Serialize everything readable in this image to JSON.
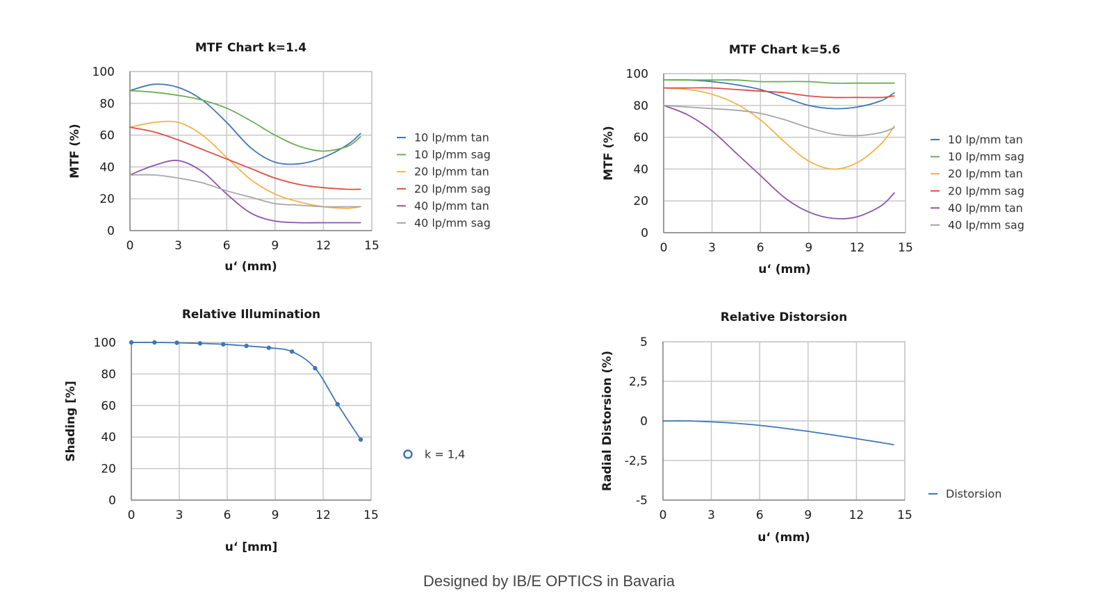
{
  "footer": {
    "text": "Designed by IB/E OPTICS in Bavaria"
  },
  "chart_data": [
    {
      "type": "line",
      "title": "MTF Chart k=1.4",
      "xlabel": "u‘ (mm)",
      "ylabel": "MTF (%)",
      "xlim": [
        0,
        15
      ],
      "ylim": [
        0,
        100
      ],
      "xticks": [
        "0",
        "3",
        "6",
        "9",
        "12",
        "15"
      ],
      "yticks": [
        "0",
        "20",
        "40",
        "60",
        "80",
        "100"
      ],
      "grid": true,
      "legend_position": "right",
      "x": [
        0,
        1.5,
        3,
        4.5,
        6,
        7.5,
        9,
        10.5,
        12,
        13.5,
        14.3
      ],
      "series": [
        {
          "name": "10 lp/mm tan",
          "color": "#3e76b5",
          "values": [
            88,
            92,
            90,
            82,
            68,
            52,
            43,
            42,
            46,
            54,
            61
          ]
        },
        {
          "name": "10 lp/mm sag",
          "color": "#6aad55",
          "values": [
            88,
            87,
            85,
            82,
            77,
            69,
            60,
            53,
            50,
            53,
            59
          ]
        },
        {
          "name": "20 lp/mm tan",
          "color": "#f2b447",
          "values": [
            65,
            68,
            68,
            60,
            46,
            32,
            23,
            18,
            15,
            14,
            15
          ]
        },
        {
          "name": "20 lp/mm sag",
          "color": "#e24b42",
          "values": [
            65,
            62,
            57,
            51,
            45,
            39,
            33,
            29,
            27,
            26,
            26
          ]
        },
        {
          "name": "40 lp/mm tan",
          "color": "#8e52a8",
          "values": [
            35,
            41,
            44,
            37,
            23,
            11,
            6,
            5,
            5,
            5,
            5
          ]
        },
        {
          "name": "40 lp/mm sag",
          "color": "#a6a6a6",
          "values": [
            35,
            35,
            33,
            30,
            25,
            21,
            17,
            16,
            15,
            15,
            15
          ]
        }
      ]
    },
    {
      "type": "line",
      "title": "MTF Chart k=5.6",
      "xlabel": "u‘ (mm)",
      "ylabel": "MTF (%)",
      "xlim": [
        0,
        15
      ],
      "ylim": [
        0,
        100
      ],
      "xticks": [
        "0",
        "3",
        "6",
        "9",
        "12",
        "15"
      ],
      "yticks": [
        "0",
        "20",
        "40",
        "60",
        "80",
        "100"
      ],
      "grid": true,
      "legend_position": "right",
      "x": [
        0,
        1.5,
        3,
        4.5,
        6,
        7.5,
        9,
        10.5,
        12,
        13.5,
        14.3
      ],
      "series": [
        {
          "name": "10 lp/mm tan",
          "color": "#3e76b5",
          "values": [
            96,
            96,
            95,
            93,
            90,
            85,
            80,
            78,
            79,
            83,
            88
          ]
        },
        {
          "name": "10 lp/mm sag",
          "color": "#6aad55",
          "values": [
            96,
            96,
            96,
            96,
            95,
            95,
            95,
            94,
            94,
            94,
            94
          ]
        },
        {
          "name": "20 lp/mm tan",
          "color": "#f2b447",
          "values": [
            91,
            90,
            87,
            81,
            71,
            57,
            45,
            40,
            44,
            56,
            67
          ]
        },
        {
          "name": "20 lp/mm sag",
          "color": "#e24b42",
          "values": [
            91,
            91,
            91,
            90,
            89,
            88,
            86,
            85,
            85,
            85,
            86
          ]
        },
        {
          "name": "40 lp/mm tan",
          "color": "#8e52a8",
          "values": [
            80,
            74,
            64,
            50,
            36,
            22,
            13,
            9,
            10,
            17,
            25
          ]
        },
        {
          "name": "40 lp/mm sag",
          "color": "#a6a6a6",
          "values": [
            80,
            79,
            78,
            77,
            75,
            71,
            66,
            62,
            61,
            63,
            66
          ]
        }
      ]
    },
    {
      "type": "line",
      "title": "Relative Illumination",
      "xlabel": "u‘ [mm]",
      "ylabel": "Shading [%]",
      "xlim": [
        0,
        15
      ],
      "ylim": [
        0,
        100
      ],
      "xticks": [
        "0",
        "3",
        "6",
        "9",
        "12",
        "15"
      ],
      "yticks": [
        "0",
        "20",
        "40",
        "60",
        "80",
        "100"
      ],
      "grid": true,
      "markers": true,
      "legend_position": "right",
      "x": [
        0,
        1.45,
        2.85,
        4.3,
        5.75,
        7.2,
        8.6,
        10.05,
        11.5,
        12.9,
        14.35
      ],
      "series": [
        {
          "name": "k = 1,4",
          "color": "#3e76b5",
          "values": [
            100,
            100,
            99.8,
            99.4,
            98.8,
            97.8,
            96.6,
            94.2,
            83.6,
            60.8,
            38.4
          ]
        }
      ]
    },
    {
      "type": "line",
      "title": "Relative Distorsion",
      "xlabel": "u‘ (mm)",
      "ylabel": "Radial Distorsion (%)",
      "xlim": [
        0,
        15
      ],
      "ylim": [
        -5,
        5
      ],
      "xticks": [
        "0",
        "3",
        "6",
        "9",
        "12",
        "15"
      ],
      "yticks": [
        "-5",
        "-2,5",
        "0",
        "2,5",
        "5"
      ],
      "grid": true,
      "legend_position": "right",
      "x": [
        0,
        1.5,
        3,
        4.5,
        6,
        7.5,
        9,
        10.5,
        12,
        13.5,
        14.3
      ],
      "series": [
        {
          "name": "Distorsion",
          "color": "#3e76b5",
          "values": [
            0,
            0,
            -0.06,
            -0.15,
            -0.28,
            -0.46,
            -0.66,
            -0.88,
            -1.12,
            -1.36,
            -1.5
          ]
        }
      ]
    }
  ]
}
